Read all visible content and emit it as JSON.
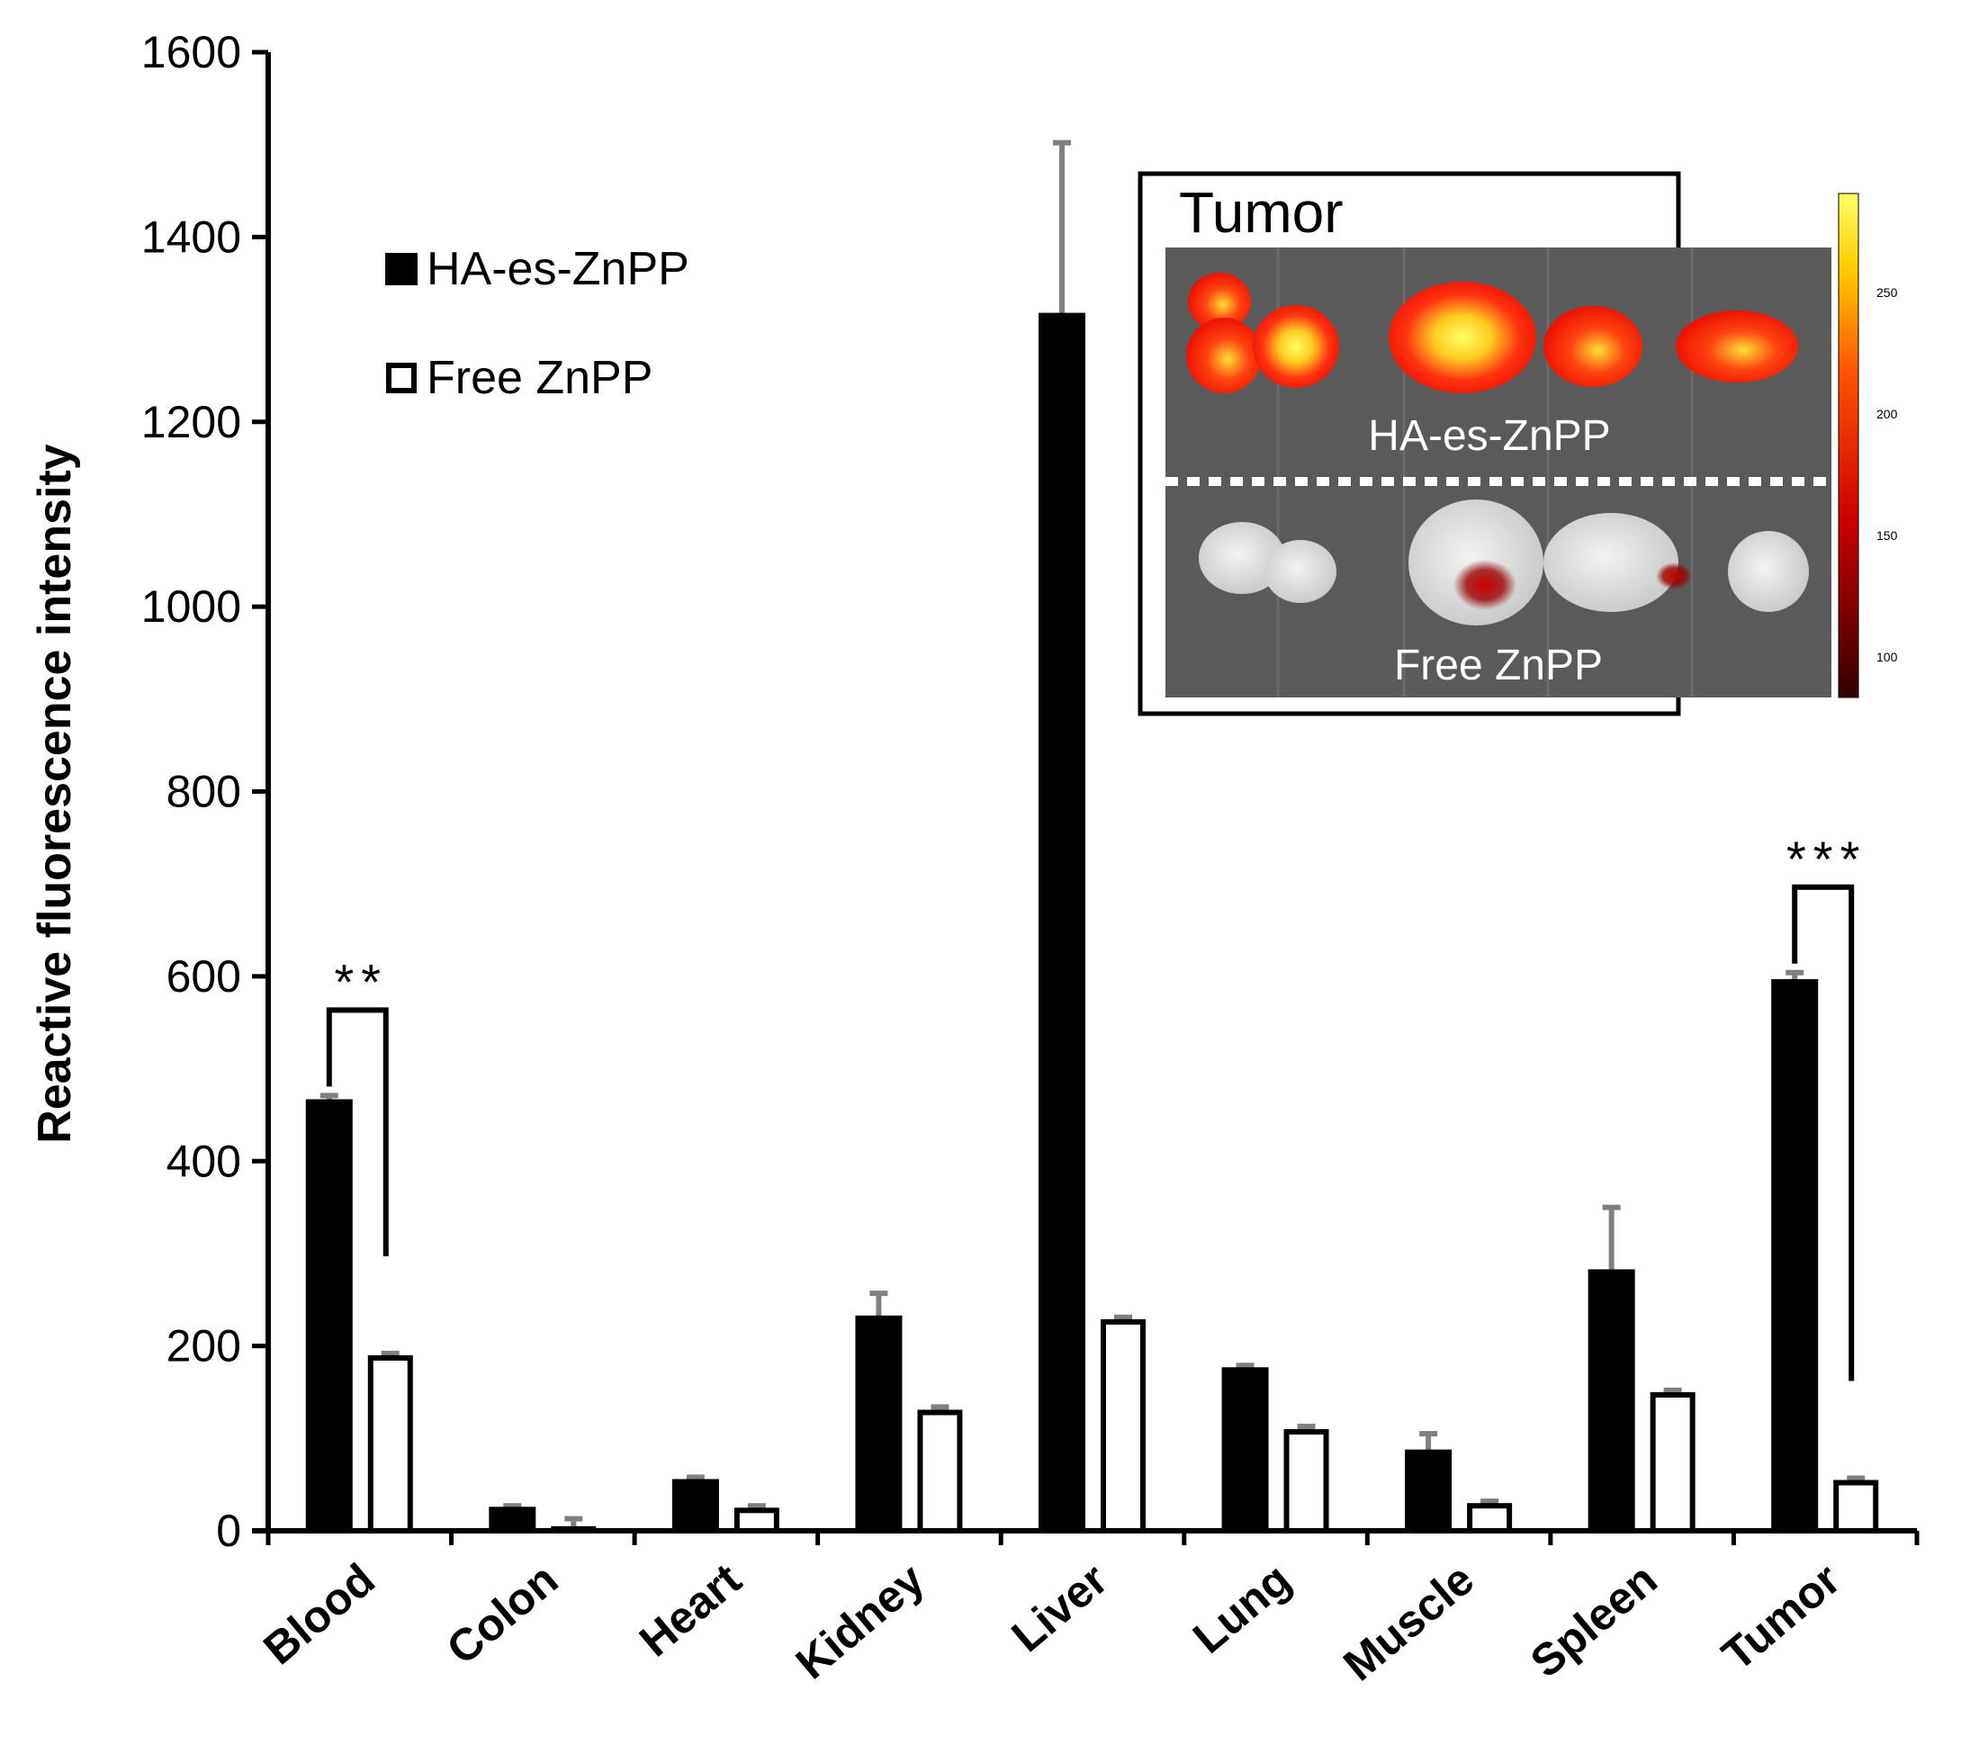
{
  "chart_data": {
    "type": "bar",
    "title": "",
    "xlabel": "",
    "ylabel": "Reactive fluorescence intensity",
    "ylim": [
      0,
      1600
    ],
    "yticks": [
      0,
      200,
      400,
      600,
      800,
      1000,
      1200,
      1400,
      1600
    ],
    "categories": [
      "Blood",
      "Colon",
      "Heart",
      "Kidney",
      "Liver",
      "Lung",
      "Muscle",
      "Spleen",
      "Tumor"
    ],
    "series": [
      {
        "name": "HA-es-ZnPP",
        "color": "#000000",
        "values": [
          466,
          25,
          55,
          232,
          1317,
          176,
          87,
          282,
          596
        ],
        "errors": [
          5,
          2,
          3,
          25,
          185,
          3,
          18,
          68,
          8
        ]
      },
      {
        "name": "Free ZnPP",
        "color": "#ffffff",
        "values": [
          190,
          5,
          25,
          131,
          229,
          110,
          30,
          150,
          55
        ],
        "errors": [
          2,
          8,
          2,
          3,
          2,
          3,
          2,
          2,
          2
        ]
      }
    ],
    "significance": [
      {
        "category": "Blood",
        "label": "**"
      },
      {
        "category": "Tumor",
        "label": "***"
      }
    ],
    "legend_position": "top-left",
    "grid": false
  },
  "inset": {
    "title": "Tumor",
    "top_label": "HA-es-ZnPP",
    "bottom_label": "Free ZnPP",
    "scale_ticks": [
      "250",
      "200",
      "150",
      "100"
    ]
  }
}
